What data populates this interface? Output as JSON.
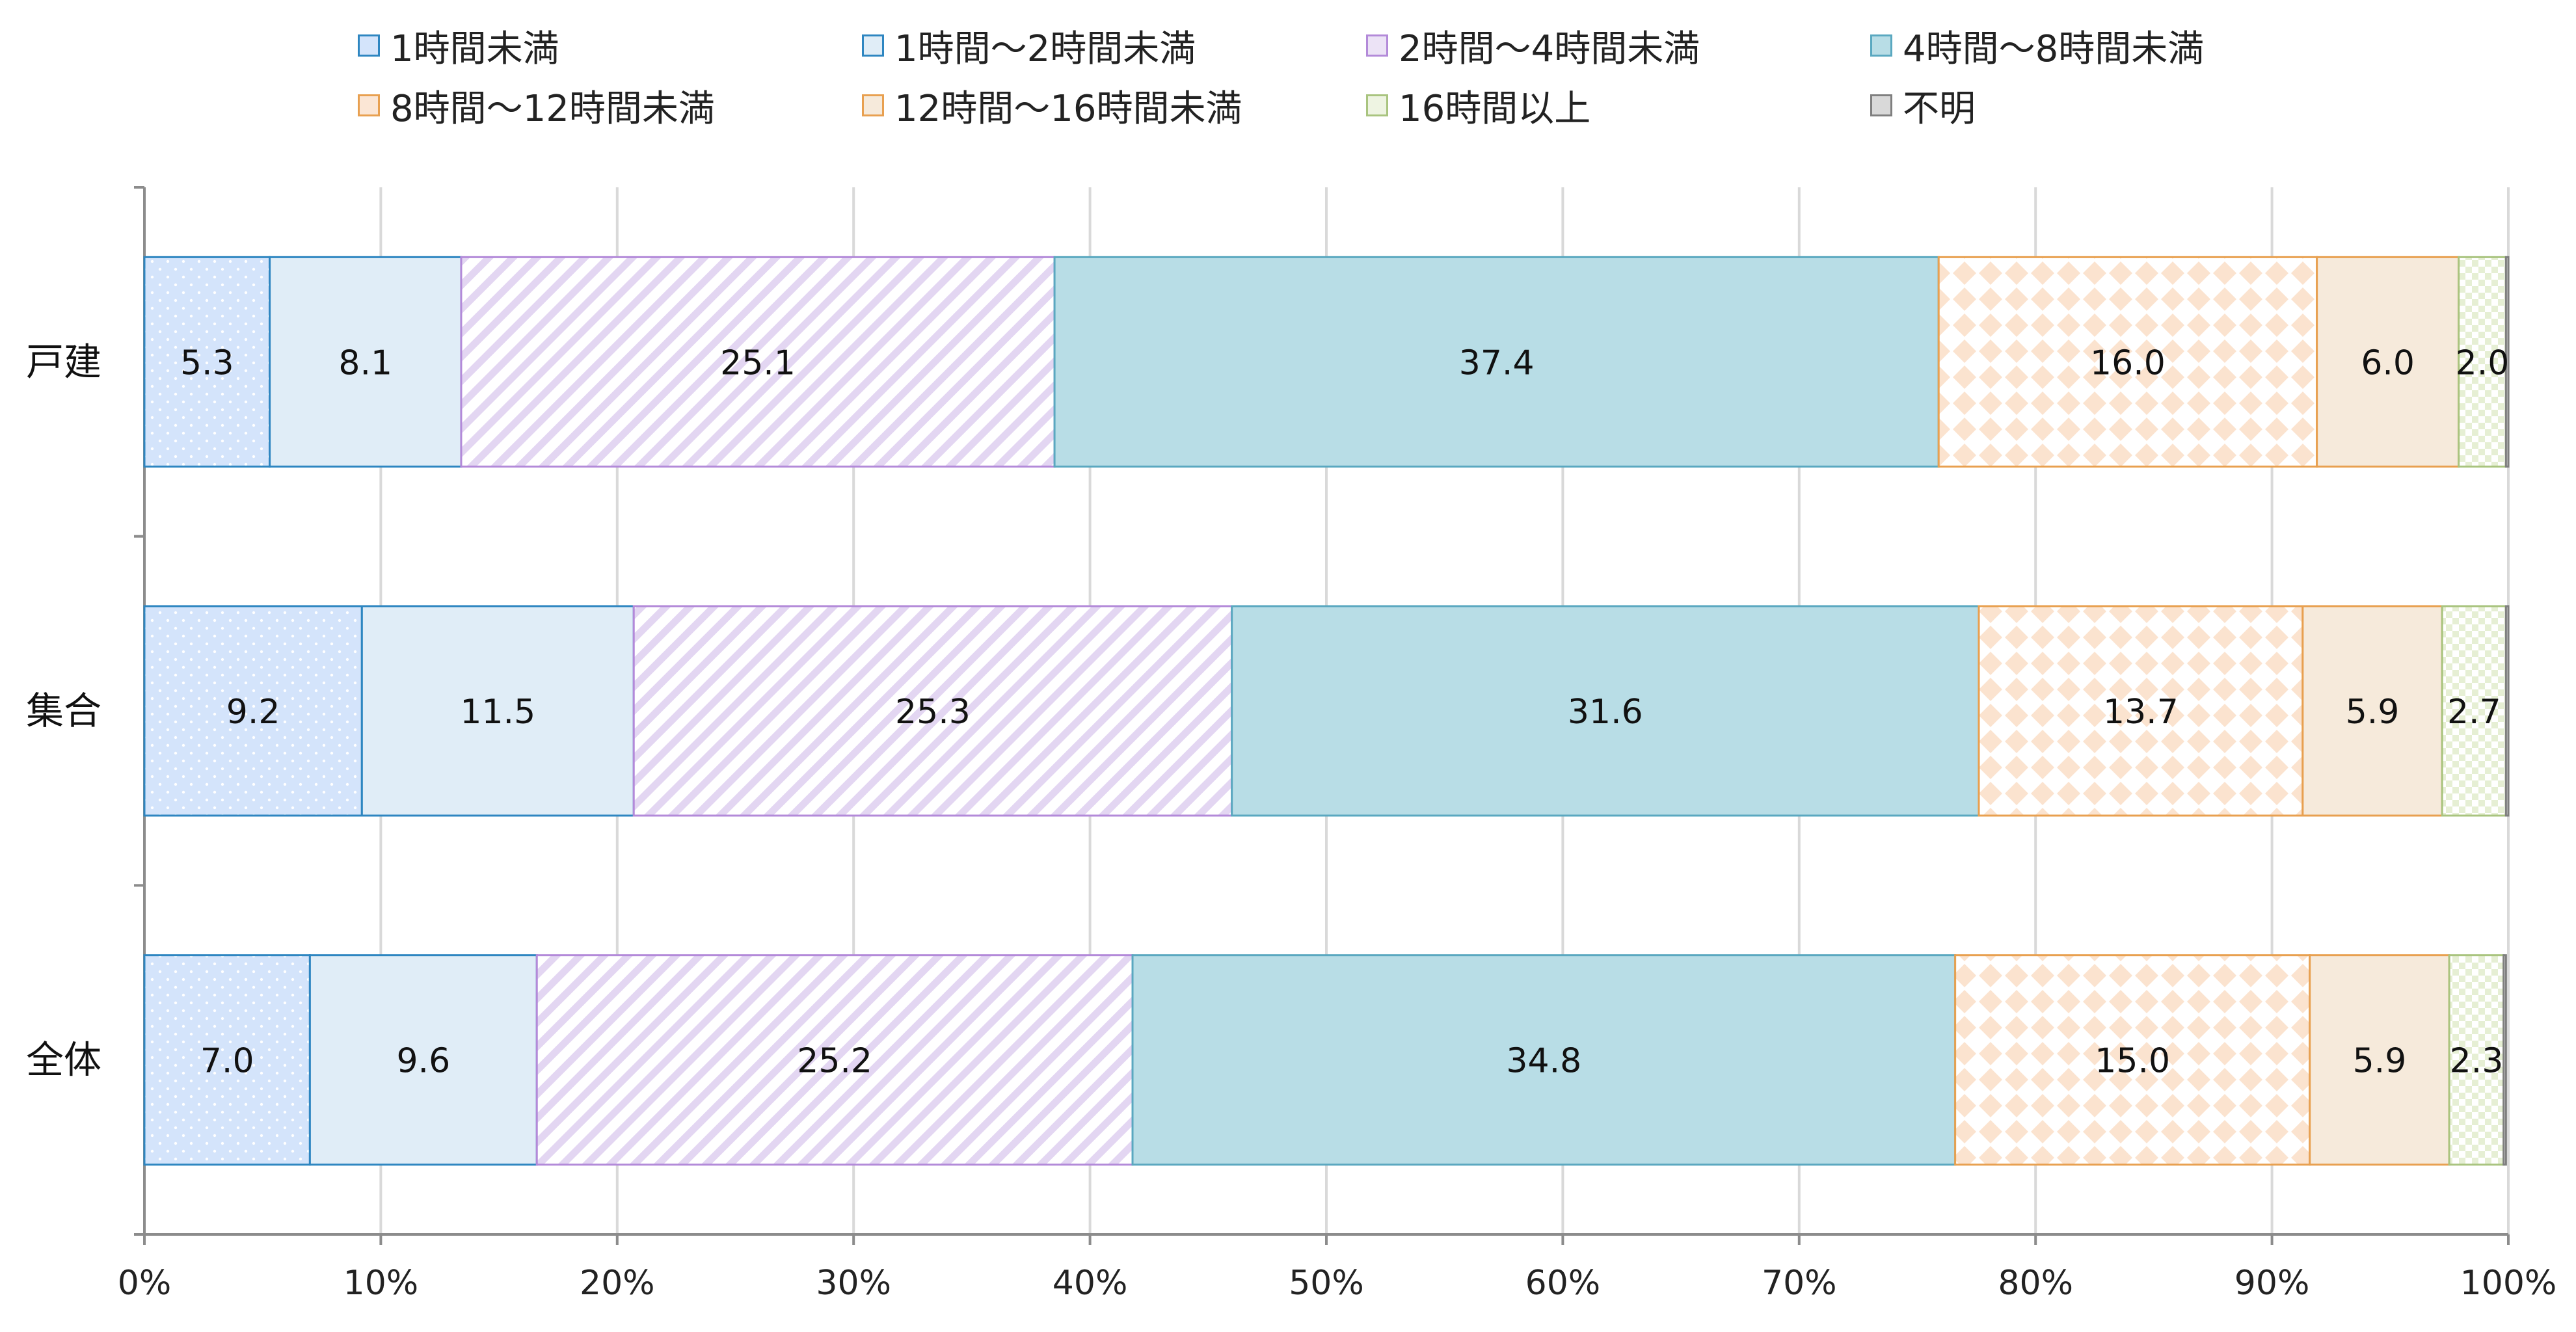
{
  "chart_data": {
    "type": "bar",
    "orientation": "horizontal",
    "stacked": true,
    "percent": true,
    "categories": [
      "戸建",
      "集合",
      "全体"
    ],
    "series": [
      {
        "name": "1時間未満",
        "color": "#d4e4fb",
        "edge": "#2e86c1",
        "pattern": "dots",
        "values": [
          5.3,
          9.2,
          7.0
        ]
      },
      {
        "name": "1時間〜2時間未満",
        "color": "#e0edf7",
        "edge": "#2e86c1",
        "pattern": "solid",
        "values": [
          8.1,
          11.5,
          9.6
        ]
      },
      {
        "name": "2時間〜4時間未満",
        "color": "#ece3f6",
        "edge": "#b38ad9",
        "pattern": "diagonal",
        "values": [
          25.1,
          25.3,
          25.2
        ]
      },
      {
        "name": "4時間〜8時間未満",
        "color": "#b8dde6",
        "edge": "#5aa8c0",
        "pattern": "solid",
        "values": [
          37.4,
          31.6,
          34.8
        ]
      },
      {
        "name": "8時間〜12時間未満",
        "color": "#fbe6d5",
        "edge": "#e8a050",
        "pattern": "diamond",
        "values": [
          16.0,
          13.7,
          15.0
        ]
      },
      {
        "name": "12時間〜16時間未満",
        "color": "#f6eadb",
        "edge": "#e8a050",
        "pattern": "solid",
        "values": [
          6.0,
          5.9,
          5.9
        ]
      },
      {
        "name": "16時間以上",
        "color": "#eef4e2",
        "edge": "#a9c47f",
        "pattern": "checker",
        "values": [
          2.0,
          2.7,
          2.3
        ]
      },
      {
        "name": "不明",
        "color": "#d9d9d9",
        "edge": "#7f7f7f",
        "pattern": "solid",
        "values": [
          0.1,
          0.1,
          0.1
        ]
      }
    ],
    "data_labels": [
      [
        "5.3",
        "8.1",
        "25.1",
        "37.4",
        "16.0",
        "6.0",
        "2.0",
        ""
      ],
      [
        "9.2",
        "11.5",
        "25.3",
        "31.6",
        "13.7",
        "5.9",
        "2.7",
        ""
      ],
      [
        "7.0",
        "9.6",
        "25.2",
        "34.8",
        "15.0",
        "5.9",
        "2.3",
        ""
      ]
    ],
    "xlim": [
      0,
      100
    ],
    "xticks": [
      "0%",
      "10%",
      "20%",
      "30%",
      "40%",
      "50%",
      "60%",
      "70%",
      "80%",
      "90%",
      "100%"
    ],
    "grid": "vertical",
    "legend_position": "top",
    "title": "",
    "xlabel": "",
    "ylabel": ""
  }
}
